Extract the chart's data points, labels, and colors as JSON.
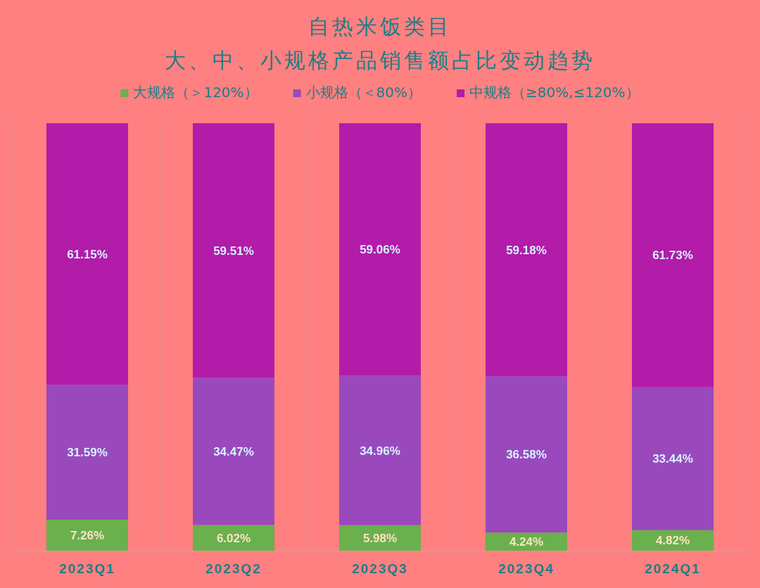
{
  "chart_data": {
    "type": "bar",
    "title": "自热米饭类目",
    "subtitle": "大、中、小规格产品销售额占比变动趋势",
    "stacked": true,
    "grid": "x",
    "legend": "top",
    "categories": [
      "2023Q1",
      "2023Q2",
      "2023Q3",
      "2023Q4",
      "2024Q1"
    ],
    "series": [
      {
        "name": "大规格（＞120%）",
        "color": "#6ab04c",
        "values": [
          7.26,
          6.02,
          5.98,
          4.24,
          4.82
        ],
        "value_labels": [
          "7.26%",
          "6.02%",
          "5.98%",
          "4.24%",
          "4.82%"
        ]
      },
      {
        "name": "小规格（＜80%）",
        "color": "#9a49bd",
        "values": [
          31.59,
          34.47,
          34.96,
          36.58,
          33.44
        ],
        "value_labels": [
          "31.59%",
          "34.47%",
          "34.96%",
          "36.58%",
          "33.44%"
        ]
      },
      {
        "name": "中规格（≥80%,≤120%）",
        "color": "#b31ba9",
        "values": [
          61.15,
          59.51,
          59.06,
          59.18,
          61.73
        ],
        "value_labels": [
          "61.15%",
          "59.51%",
          "59.06%",
          "59.18%",
          "61.73%"
        ]
      }
    ]
  }
}
